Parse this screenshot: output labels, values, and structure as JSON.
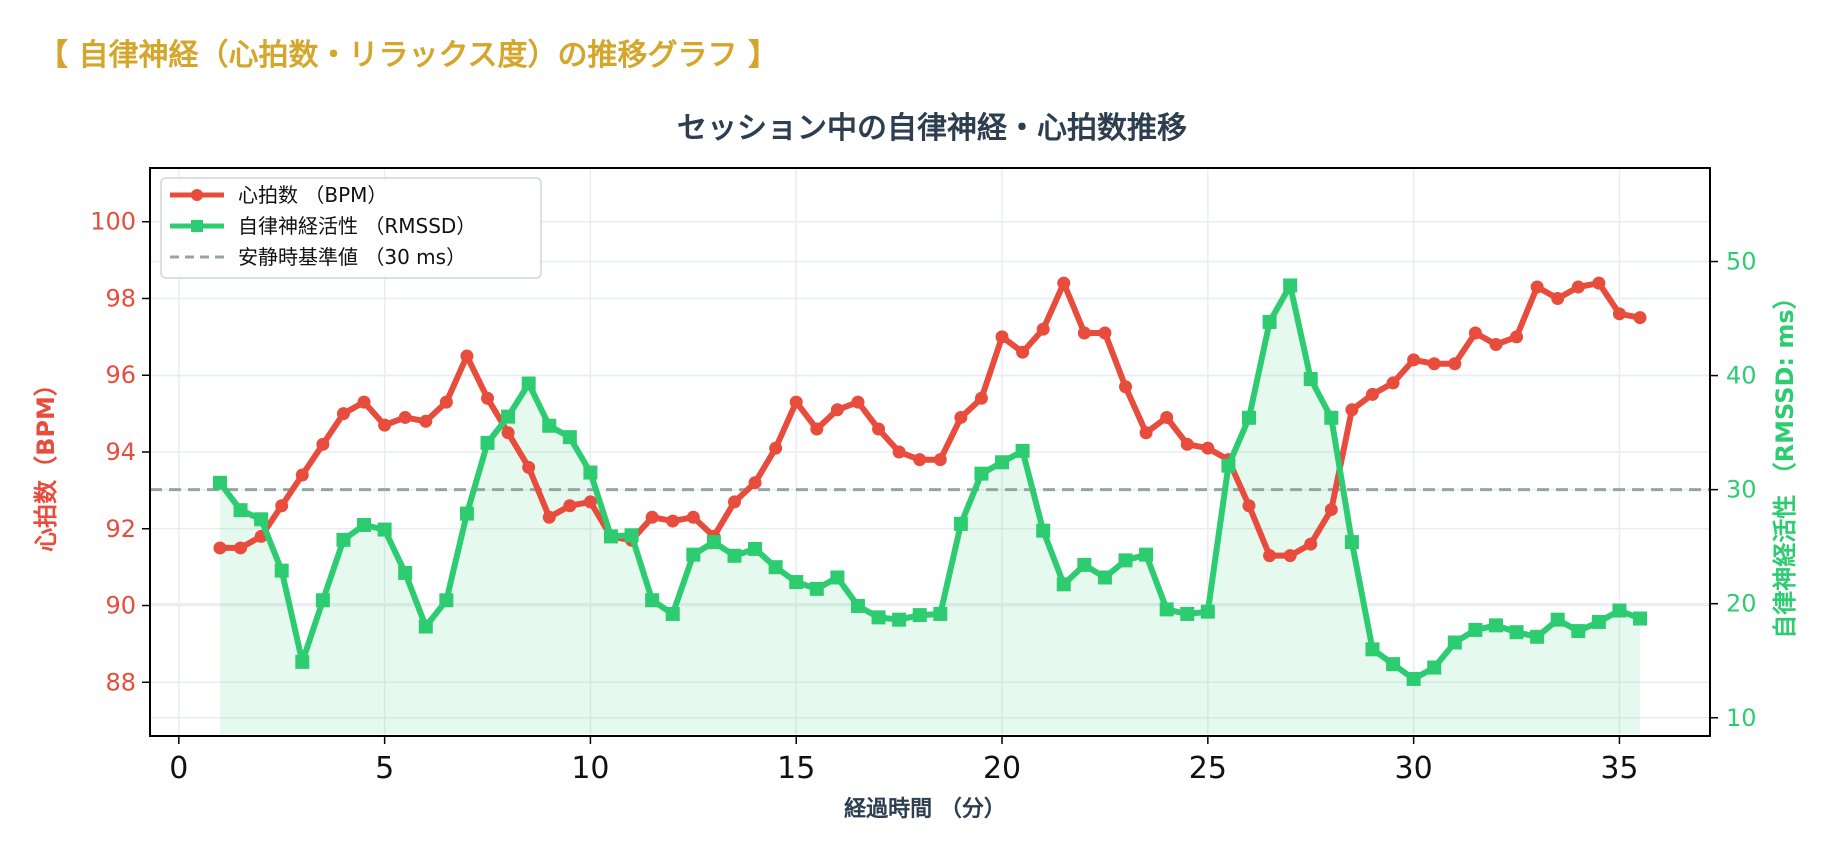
{
  "page": {
    "heading": "【 自律神経（心拍数・リラックス度）の推移グラフ 】"
  },
  "chart_data": {
    "type": "line",
    "title": "セッション中の自律神経・心拍数推移",
    "xlabel": "経過時間 （分）",
    "ylabel_left": "心拍数（BPM）",
    "ylabel_right": "自律神経活性 （RMSSD: ms）",
    "xlim": [
      -0.7,
      37.2
    ],
    "ylim_left": [
      86.6,
      101.4
    ],
    "ylim_right": [
      8.4,
      58.2
    ],
    "x_ticks": [
      0,
      5,
      10,
      15,
      20,
      25,
      30,
      35
    ],
    "y_ticks_left": [
      88,
      90,
      92,
      94,
      96,
      98,
      100
    ],
    "y_ticks_right": [
      10,
      20,
      30,
      40,
      50
    ],
    "grid": true,
    "legend_position": "top-left",
    "x": [
      1,
      1.5,
      2,
      2.5,
      3,
      3.5,
      4,
      4.5,
      5,
      5.5,
      6,
      6.5,
      7,
      7.5,
      8,
      8.5,
      9,
      9.5,
      10,
      10.5,
      11,
      11.5,
      12,
      12.5,
      13,
      13.5,
      14,
      14.5,
      15,
      15.5,
      16,
      16.5,
      17,
      17.5,
      18,
      18.5,
      19,
      19.5,
      20,
      20.5,
      21,
      21.5,
      22,
      22.5,
      23,
      23.5,
      24,
      24.5,
      25,
      25.5,
      26,
      26.5,
      27,
      27.5,
      28,
      28.5,
      29,
      29.5,
      30,
      30.5,
      31,
      31.5,
      32,
      32.5,
      33,
      33.5,
      34,
      34.5,
      35,
      35.5
    ],
    "series": [
      {
        "name": "心拍数 （BPM）",
        "axis": "left",
        "color": "#e74c3c",
        "marker": "circle",
        "values": [
          91.5,
          91.5,
          91.8,
          92.6,
          93.4,
          94.2,
          95.0,
          95.3,
          94.7,
          94.9,
          94.8,
          95.3,
          96.5,
          95.4,
          94.5,
          93.6,
          92.3,
          92.6,
          92.7,
          91.8,
          91.7,
          92.3,
          92.2,
          92.3,
          91.8,
          92.7,
          93.2,
          94.1,
          95.3,
          94.6,
          95.1,
          95.3,
          94.6,
          94.0,
          93.8,
          93.8,
          94.9,
          95.4,
          97.0,
          96.6,
          97.2,
          98.4,
          97.1,
          97.1,
          95.7,
          94.5,
          94.9,
          94.2,
          94.1,
          93.8,
          92.6,
          91.3,
          91.3,
          91.6,
          92.5,
          95.1,
          95.5,
          95.8,
          96.4,
          96.3,
          96.3,
          97.1,
          96.8,
          97.0,
          98.3,
          98.0,
          98.3,
          98.4,
          97.6,
          97.5
        ]
      },
      {
        "name": "自律神経活性 （RMSSD）",
        "axis": "right",
        "color": "#2ecc71",
        "marker": "square",
        "fill": true,
        "values": [
          30.6,
          28.2,
          27.4,
          22.9,
          14.9,
          20.3,
          25.6,
          26.9,
          26.5,
          22.7,
          18.0,
          20.3,
          27.9,
          34.1,
          36.4,
          39.3,
          35.6,
          34.6,
          31.5,
          25.9,
          26.0,
          20.3,
          19.1,
          24.3,
          25.4,
          24.2,
          24.8,
          23.2,
          21.9,
          21.3,
          22.3,
          19.8,
          18.8,
          18.6,
          19.0,
          19.1,
          27.0,
          31.4,
          32.4,
          33.4,
          26.4,
          21.7,
          23.4,
          22.3,
          23.8,
          24.3,
          19.5,
          19.1,
          19.3,
          32.1,
          36.3,
          44.7,
          47.9,
          39.7,
          36.3,
          25.4,
          16.0,
          14.7,
          13.4,
          14.4,
          16.6,
          17.7,
          18.1,
          17.5,
          17.1,
          18.6,
          17.6,
          18.4,
          19.4,
          18.7
        ]
      }
    ],
    "reference_line": {
      "name": "安静時基準値 （30 ms）",
      "axis": "right",
      "value": 30,
      "color": "#95a5a6",
      "style": "dashed"
    },
    "colors": {
      "heading": "#d4a72c",
      "title": "#2c3e50",
      "left_axis": "#e74c3c",
      "right_axis": "#2ecc71",
      "grid": "#e8edf2"
    }
  }
}
